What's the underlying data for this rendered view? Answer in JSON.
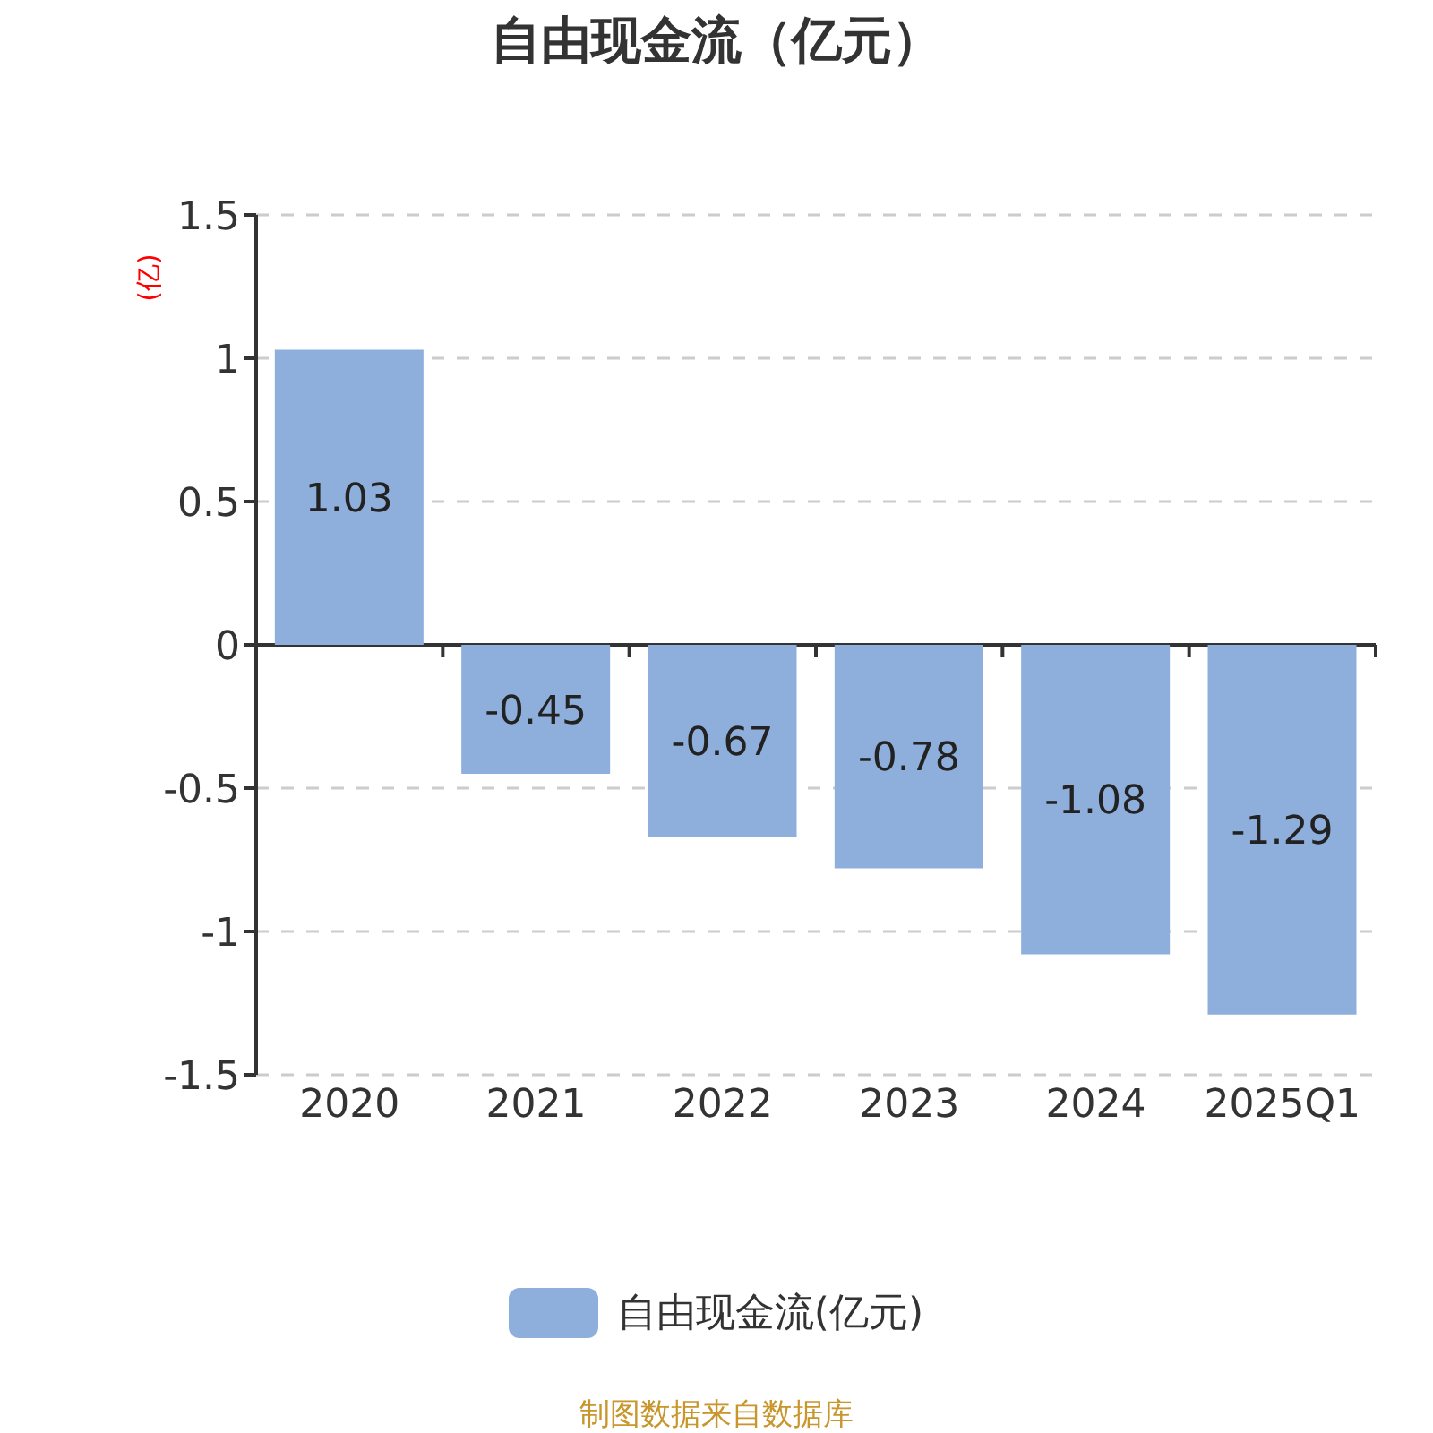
{
  "chart_data": {
    "type": "bar",
    "title": "自由现金流（亿元）",
    "ylabel": "(亿)",
    "categories": [
      "2020",
      "2021",
      "2022",
      "2023",
      "2024",
      "2025Q1"
    ],
    "series": [
      {
        "name": "自由现金流(亿元)",
        "color": "#8eaedb",
        "values": [
          1.03,
          -0.45,
          -0.67,
          -0.78,
          -1.08,
          -1.29
        ]
      }
    ],
    "ylim": [
      -1.5,
      1.5
    ],
    "yticks": [
      -1.5,
      -1,
      -0.5,
      0,
      0.5,
      1,
      1.5
    ],
    "grid": "y",
    "legend": "bottom",
    "data_labels": true,
    "annotations": [
      "制图数据来自数据库"
    ]
  }
}
